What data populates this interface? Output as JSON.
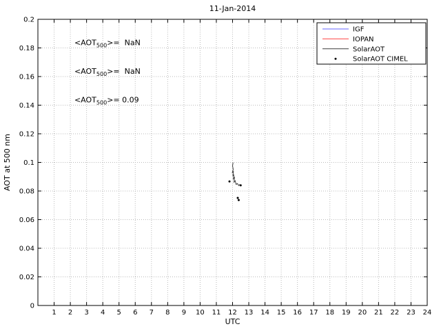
{
  "chart_data": {
    "type": "line",
    "title": "11-Jan-2014",
    "xlabel": "UTC",
    "ylabel": "AOT at 500 nm",
    "xlim": [
      0,
      24
    ],
    "ylim": [
      0,
      0.2
    ],
    "grid": true,
    "xticks": [
      1,
      2,
      3,
      4,
      5,
      6,
      7,
      8,
      9,
      10,
      11,
      12,
      13,
      14,
      15,
      16,
      17,
      18,
      19,
      20,
      21,
      22,
      23,
      24
    ],
    "yticks": [
      0,
      0.02,
      0.04,
      0.06,
      0.08,
      0.1,
      0.12,
      0.14,
      0.16,
      0.18,
      0.2
    ],
    "ytick_labels": [
      "0",
      "0.02",
      "0.04",
      "0.06",
      "0.08",
      "0.1",
      "0.12",
      "0.14",
      "0.16",
      "0.18",
      "0.2"
    ],
    "colors": {
      "grid": "#b9b9b9",
      "axis": "#000000",
      "igf": "#6666ff",
      "iopan": "#ff4444",
      "solaraot": "#3a3a3a",
      "cimel": "#000000"
    },
    "legend": {
      "position": "top-right",
      "entries": [
        {
          "label": "IGF",
          "color": "#6666ff",
          "type": "line"
        },
        {
          "label": "IOPAN",
          "color": "#ff4444",
          "type": "line"
        },
        {
          "label": "SolarAOT",
          "color": "#3a3a3a",
          "type": "line"
        },
        {
          "label": "SolarAOT CIMEL",
          "color": "#000000",
          "type": "marker"
        }
      ]
    },
    "series": [
      {
        "name": "IGF",
        "type": "line",
        "color": "#6666ff",
        "points": []
      },
      {
        "name": "IOPAN",
        "type": "line",
        "color": "#ff4444",
        "points": []
      },
      {
        "name": "SolarAOT",
        "type": "line",
        "color": "#3a3a3a",
        "points": [
          [
            12.03,
            0.1
          ],
          [
            12.0,
            0.0975
          ],
          [
            12.04,
            0.0952
          ],
          [
            11.99,
            0.093
          ],
          [
            12.05,
            0.0936
          ],
          [
            12.02,
            0.0905
          ],
          [
            12.08,
            0.0915
          ],
          [
            12.05,
            0.0885
          ],
          [
            12.12,
            0.0895
          ],
          [
            12.09,
            0.0862
          ],
          [
            12.16,
            0.0872
          ],
          [
            12.22,
            0.0846
          ],
          [
            12.3,
            0.0852
          ],
          [
            12.38,
            0.0838
          ],
          [
            12.45,
            0.0846
          ]
        ]
      },
      {
        "name": "SolarAOT CIMEL",
        "type": "scatter",
        "color": "#000000",
        "points": [
          [
            11.81,
            0.0867
          ],
          [
            12.5,
            0.084
          ],
          [
            12.32,
            0.0752
          ],
          [
            12.38,
            0.0737
          ]
        ]
      }
    ],
    "annotations": [
      {
        "pre": "<AOT",
        "sub": "500",
        "post": ">=  NaN",
        "x": 2.25,
        "y": 0.182,
        "color": "#0000ff"
      },
      {
        "pre": "<AOT",
        "sub": "500",
        "post": ">=  NaN",
        "x": 2.25,
        "y": 0.162,
        "color": "#ff0000"
      },
      {
        "pre": "<AOT",
        "sub": "500",
        "post": ">= 0.09",
        "x": 2.25,
        "y": 0.142,
        "color": "#000000"
      }
    ],
    "mean_values": {
      "IGF": "NaN",
      "IOPAN": "NaN",
      "SolarAOT": "0.09"
    }
  }
}
